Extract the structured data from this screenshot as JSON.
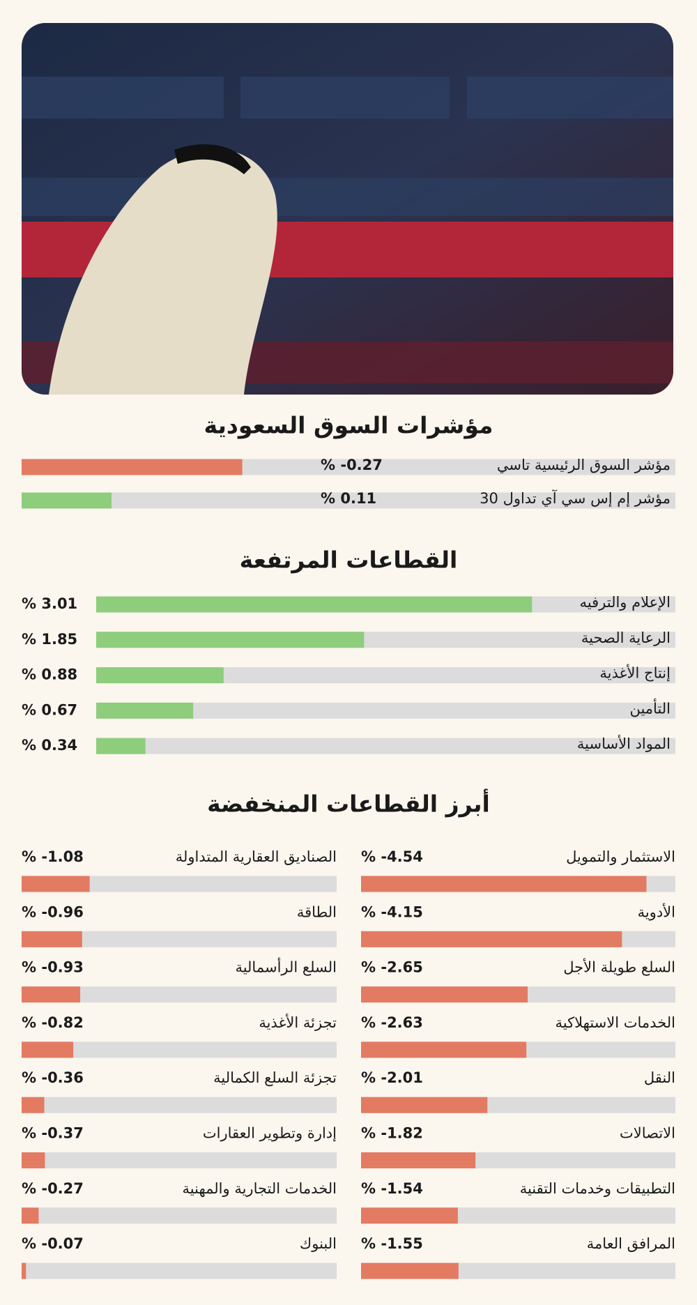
{
  "chart_data": [
    {
      "type": "hbar",
      "title": "مؤشرات السوق السعودية",
      "categories": [
        "مؤشر السوق الرئيسية تاسي",
        "مؤشر إم إس سي آي تداول 30"
      ],
      "values": [
        -0.27,
        0.11
      ],
      "value_labels": [
        "% -0.27",
        "% 0.11"
      ],
      "colors": [
        "#e27b62",
        "#8dcd7c"
      ],
      "xlim": [
        0,
        0.8
      ]
    },
    {
      "type": "hbar",
      "title": "القطاعات المرتفعة",
      "categories": [
        "الإعلام والترفيه",
        "الرعاية الصحية",
        "إنتاج الأغذية",
        "التأمين",
        "المواد الأساسية"
      ],
      "values": [
        3.01,
        1.85,
        0.88,
        0.67,
        0.34
      ],
      "value_labels": [
        "% 3.01",
        "% 1.85",
        "% 0.88",
        "% 0.67",
        "% 0.34"
      ],
      "color": "#8dcd7c",
      "xlim": [
        0,
        4
      ]
    },
    {
      "type": "hbar",
      "title": "أبرز القطاعات المنخفضة",
      "categories": [
        "الاستثمار والتمويل",
        "الأدوية",
        "السلع طويلة الأجل",
        "الخدمات الاستهلاكية",
        "النقل",
        "الاتصالات",
        "التطبيقات وخدمات التقنية",
        "المرافق العامة",
        "الصناديق العقارية المتداولة",
        "الطاقة",
        "السلع الرأسمالية",
        "تجزئة الأغذية",
        "تجزئة السلع الكمالية",
        "إدارة وتطوير العقارات",
        "الخدمات التجارية والمهنية",
        "البنوك"
      ],
      "values": [
        -4.54,
        -4.15,
        -2.65,
        -2.63,
        -2.01,
        -1.82,
        -1.54,
        -1.55,
        -1.08,
        -0.96,
        -0.93,
        -0.82,
        -0.36,
        -0.37,
        -0.27,
        -0.07
      ],
      "value_labels": [
        "% -4.54",
        "% -4.15",
        "% -2.65",
        "% -2.63",
        "% -2.01",
        "% -1.82",
        "% -1.54",
        "% -1.55",
        "% -1.08",
        "% -0.96",
        "% -0.93",
        "% -0.82",
        "% -0.36",
        "% -0.37",
        "% -0.27",
        "% -0.07"
      ],
      "color": "#e27b62",
      "xlim": [
        0,
        5
      ]
    }
  ]
}
